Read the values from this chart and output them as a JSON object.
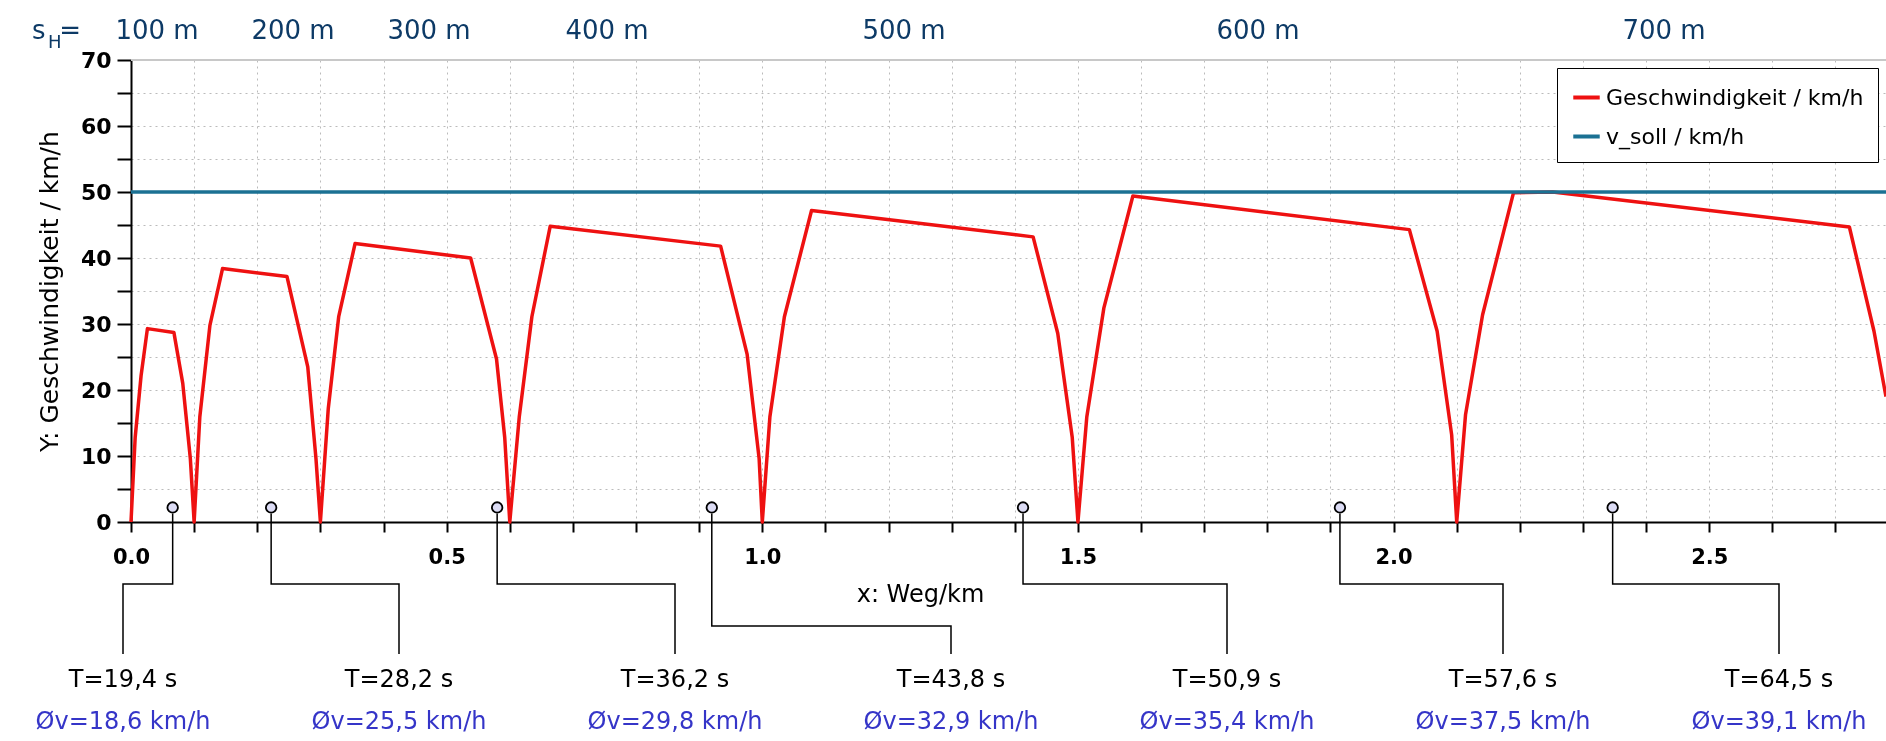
{
  "chart_data": {
    "type": "line",
    "xlabel": "x: Weg/km",
    "ylabel": "Y: Geschwindigkeit / km/h",
    "xlim": [
      0,
      2.78
    ],
    "ylim": [
      0,
      70
    ],
    "xticks": [
      {
        "value": 0,
        "label": "0.0"
      },
      {
        "value": 0.1,
        "label": null
      },
      {
        "value": 0.2,
        "label": null
      },
      {
        "value": 0.3,
        "label": null
      },
      {
        "value": 0.4,
        "label": null
      },
      0.5,
      {
        "value": 0.6,
        "label": null
      },
      {
        "value": 0.7,
        "label": null
      },
      {
        "value": 0.8,
        "label": null
      },
      {
        "value": 0.9,
        "label": null
      },
      {
        "value": 1,
        "label": "1.0"
      },
      {
        "value": 1.1,
        "label": null
      },
      {
        "value": 1.2,
        "label": null
      },
      {
        "value": 1.3,
        "label": null
      },
      {
        "value": 1.4,
        "label": null
      },
      1.5,
      {
        "value": 1.6,
        "label": null
      },
      {
        "value": 1.7,
        "label": null
      },
      {
        "value": 1.8,
        "label": null
      },
      {
        "value": 1.9,
        "label": null
      },
      {
        "value": 2,
        "label": "2.0"
      },
      {
        "value": 2.1,
        "label": null
      },
      {
        "value": 2.2,
        "label": null
      },
      {
        "value": 2.3,
        "label": null
      },
      {
        "value": 2.4,
        "label": null
      },
      2.5,
      {
        "value": 2.6,
        "label": null
      },
      {
        "value": 2.7,
        "label": null
      }
    ],
    "yticks": [
      0,
      {
        "value": 5,
        "label": null
      },
      10,
      {
        "value": 15,
        "label": null
      },
      20,
      {
        "value": 25,
        "label": null
      },
      30,
      {
        "value": 35,
        "label": null
      },
      40,
      {
        "value": 45,
        "label": null
      },
      50,
      {
        "value": 55,
        "label": null
      },
      60,
      {
        "value": 65,
        "label": null
      },
      70
    ],
    "grid": true,
    "legend": "top right",
    "line_style": "solid",
    "series": [
      {
        "name": "Geschwindigkeit / km/h",
        "color": "#ee1111",
        "x": [
          0,
          0.0066,
          0.016,
          0.026,
          0.068,
          0.082,
          0.094,
          0.1,
          0.109,
          0.125,
          0.145,
          0.247,
          0.28,
          0.293,
          0.3,
          0.3125,
          0.329,
          0.355,
          0.538,
          0.579,
          0.592,
          0.6,
          0.615,
          0.635,
          0.664,
          0.934,
          0.976,
          0.995,
          1.0,
          1.012,
          1.035,
          1.078,
          1.429,
          1.468,
          1.491,
          1.5,
          1.514,
          1.541,
          1.587,
          2.025,
          2.069,
          2.092,
          2.1,
          2.114,
          2.141,
          2.19,
          2.252,
          2.722,
          2.761,
          2.78
        ],
        "values": [
          0,
          12.8,
          22.2,
          29.3,
          28.7,
          21,
          9.6,
          0,
          15.9,
          29.8,
          38.4,
          37.2,
          23.5,
          9.6,
          0,
          17.2,
          31.1,
          42.2,
          40,
          24.7,
          12.8,
          0,
          15.9,
          31.1,
          44.8,
          41.8,
          25.4,
          9.6,
          0,
          15.9,
          31.1,
          47.2,
          43.2,
          28.6,
          12.8,
          0,
          15.9,
          32.4,
          49.4,
          44.3,
          28.9,
          13.2,
          0,
          16.3,
          31.4,
          49.9,
          50,
          44.7,
          28.9,
          19
        ]
      },
      {
        "name": "v_soll / km/h",
        "color": "#1b7193",
        "x": [
          0,
          2.78
        ],
        "values": [
          50,
          50
        ]
      },
      {
        "color": "#dcdcf5",
        "type": "scatter",
        "marker": "circle",
        "x": [
          0.066,
          0.222,
          0.58,
          0.92,
          1.413,
          1.915,
          2.347
        ],
        "values": [
          2.2,
          2.2,
          2.2,
          2.2,
          2.2,
          2.2,
          2.2
        ]
      }
    ],
    "annotations": [
      "s$_{H}$=",
      "100 m",
      "200 m",
      "300 m",
      "400 m",
      "500 m",
      "600 m",
      "700 m",
      {
        "text": "T=19,4 s",
        "x": 0.066,
        "y": 2.2
      },
      "Øv=18,6 km/h",
      {
        "text": "T=28,2 s",
        "x": 0.222,
        "y": 2.2
      },
      "Øv=25,5 km/h",
      {
        "text": "T=36,2 s",
        "x": 0.58,
        "y": 2.2
      },
      "Øv=29,8 km/h",
      {
        "text": "T=43,8 s",
        "x": 0.92,
        "y": 2.2
      },
      "Øv=32,9 km/h",
      {
        "text": "T=50,9 s",
        "x": 1.413,
        "y": 2.2
      },
      "Øv=35,4 km/h",
      {
        "text": "T=57,6 s",
        "x": 1.915,
        "y": 2.2
      },
      "Øv=37,5 km/h",
      {
        "text": "T=64,5 s",
        "x": 2.347,
        "y": 2.2
      },
      "Øv=39,1 km/h"
    ]
  }
}
